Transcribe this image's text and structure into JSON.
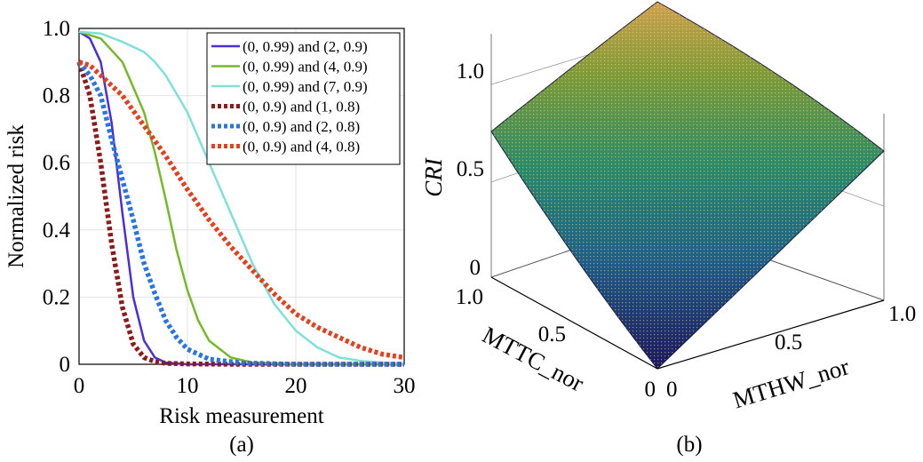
{
  "panels": {
    "a": {
      "label": "(a)"
    },
    "b": {
      "label": "(b)"
    }
  },
  "chart_data": [
    {
      "type": "line",
      "title": "",
      "xlabel": "Risk measurement",
      "ylabel": "Normalized risk",
      "xlim": [
        0,
        30
      ],
      "ylim": [
        0,
        1
      ],
      "xticks": [
        0,
        10,
        20,
        30
      ],
      "yticks": [
        0,
        0.2,
        0.4,
        0.6,
        0.8,
        1.0
      ],
      "ytick_labels": [
        "0",
        "0.2",
        "0.4",
        "0.6",
        "0.8",
        "1.0"
      ],
      "grid": true,
      "legend_position": "top-right",
      "series": [
        {
          "name": "(0, 0.99) and (2, 0.9)",
          "color": "#4b2fd6",
          "style": "solid",
          "x": [
            0,
            1,
            2,
            3,
            4,
            5,
            6,
            7,
            8,
            10,
            12,
            15,
            20,
            30
          ],
          "y": [
            0.99,
            0.97,
            0.9,
            0.72,
            0.45,
            0.2,
            0.07,
            0.02,
            0.005,
            0.0,
            0.0,
            0.0,
            0.0,
            0.0
          ]
        },
        {
          "name": "(0, 0.99) and (4, 0.9)",
          "color": "#77b82a",
          "style": "solid",
          "x": [
            0,
            2,
            4,
            6,
            7,
            8,
            9,
            10,
            11,
            12,
            14,
            16,
            20,
            30
          ],
          "y": [
            0.99,
            0.97,
            0.9,
            0.75,
            0.63,
            0.49,
            0.34,
            0.22,
            0.13,
            0.07,
            0.02,
            0.005,
            0.0,
            0.0
          ]
        },
        {
          "name": "(0, 0.99) and (7, 0.9)",
          "color": "#7ee0d9",
          "style": "solid",
          "x": [
            0,
            2,
            4,
            6,
            7,
            8,
            10,
            12,
            14,
            16,
            18,
            20,
            22,
            24,
            26,
            30
          ],
          "y": [
            0.99,
            0.985,
            0.96,
            0.93,
            0.9,
            0.86,
            0.75,
            0.6,
            0.45,
            0.3,
            0.18,
            0.1,
            0.05,
            0.02,
            0.01,
            0.0
          ]
        },
        {
          "name": "(0, 0.9) and (1, 0.8)",
          "color": "#8b1a1a",
          "style": "dotted",
          "x": [
            0,
            1,
            2,
            3,
            4,
            5,
            6,
            7,
            8,
            10,
            15,
            20,
            30
          ],
          "y": [
            0.9,
            0.8,
            0.6,
            0.36,
            0.17,
            0.06,
            0.02,
            0.008,
            0.003,
            0.001,
            0.0,
            0.0,
            0.0
          ]
        },
        {
          "name": "(0, 0.9) and (2, 0.8)",
          "color": "#2a74e0",
          "style": "dotted",
          "x": [
            0,
            1,
            2,
            3,
            4,
            5,
            6,
            7,
            8,
            9,
            10,
            12,
            15,
            20,
            30
          ],
          "y": [
            0.9,
            0.86,
            0.8,
            0.67,
            0.55,
            0.43,
            0.3,
            0.21,
            0.13,
            0.08,
            0.045,
            0.015,
            0.004,
            0.0,
            0.0
          ]
        },
        {
          "name": "(0, 0.9) and (4, 0.8)",
          "color": "#e0411e",
          "style": "dotted",
          "x": [
            0,
            1,
            2,
            4,
            6,
            8,
            10,
            12,
            14,
            16,
            18,
            20,
            22,
            24,
            26,
            28,
            30
          ],
          "y": [
            0.9,
            0.89,
            0.86,
            0.8,
            0.71,
            0.62,
            0.52,
            0.43,
            0.35,
            0.28,
            0.21,
            0.15,
            0.11,
            0.08,
            0.05,
            0.03,
            0.02
          ]
        }
      ]
    },
    {
      "type": "surface",
      "title": "",
      "xlabel": "MTTC_nor",
      "ylabel": "MTHW_nor",
      "zlabel": "CRI",
      "xlim": [
        0,
        1
      ],
      "ylim": [
        0,
        1
      ],
      "zlim": [
        0,
        1
      ],
      "xtick_labels": [
        "0",
        "0.5",
        "1.0"
      ],
      "ytick_labels": [
        "0",
        "0.5",
        "1.0"
      ],
      "ztick_labels": [
        "0",
        "0.5",
        "1.0"
      ],
      "colormap": "parula",
      "corner_values": {
        "origin": 0.0,
        "mttc_max": 0.72,
        "mthw_max": 0.62,
        "both_max": 1.0
      }
    }
  ]
}
